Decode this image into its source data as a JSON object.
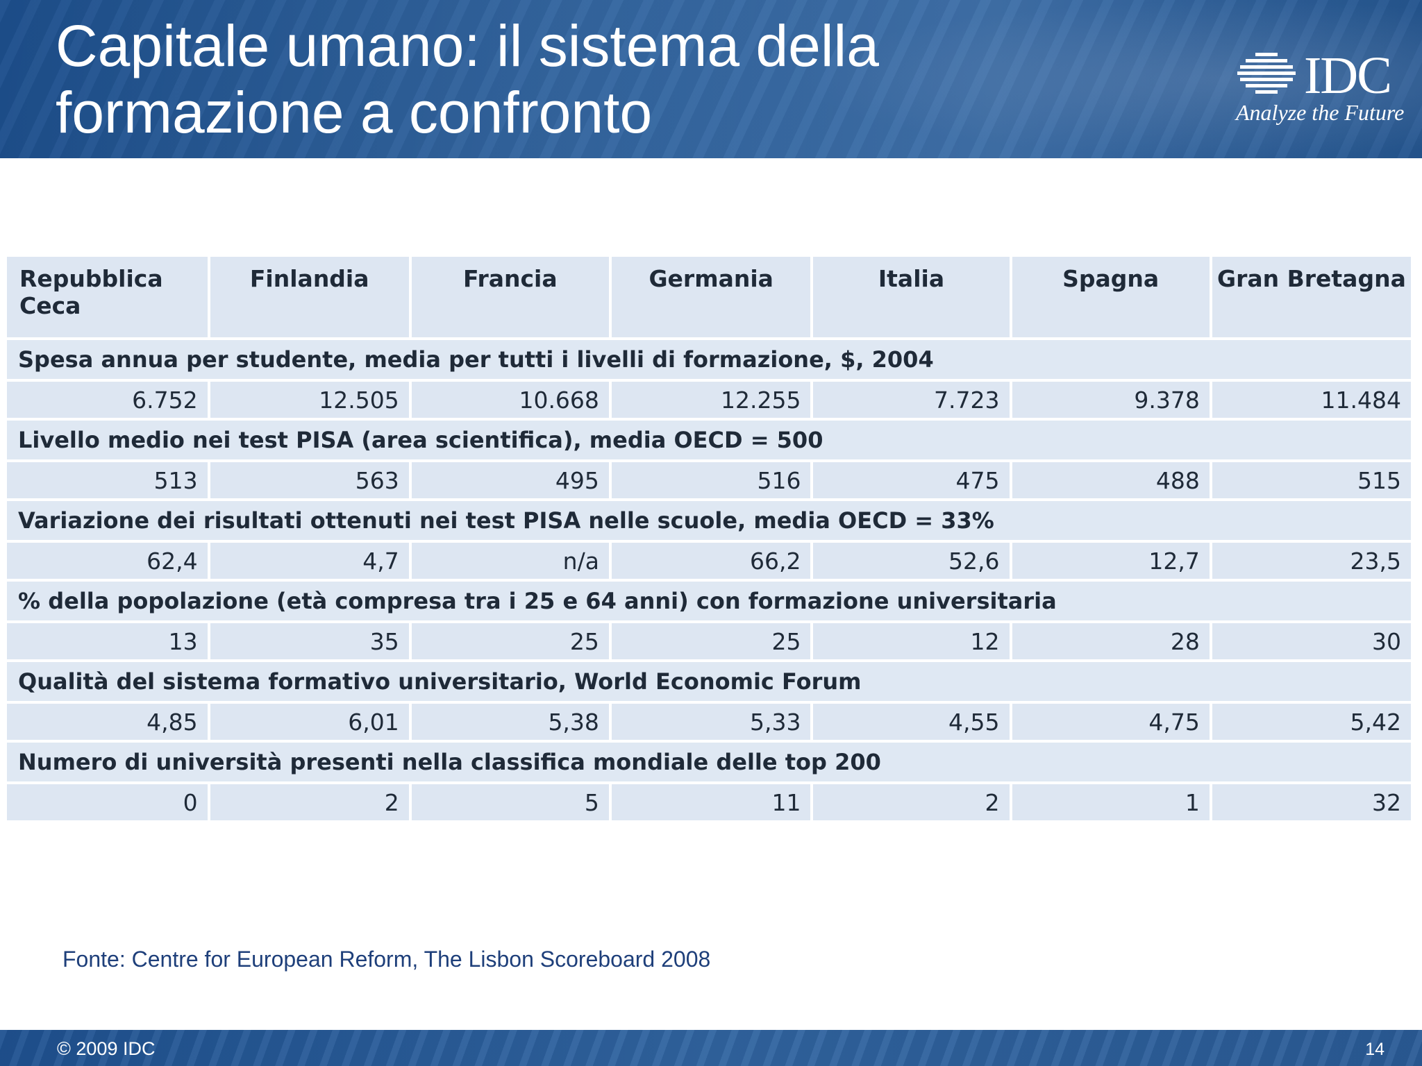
{
  "slide": {
    "title_line1": "Capitale umano: il sistema della",
    "title_line2": "formazione a confronto"
  },
  "logo": {
    "word": "IDC",
    "tagline": "Analyze the Future",
    "icon": "idc-globe-icon"
  },
  "table": {
    "columns": [
      "Repubblica Ceca",
      "Finlandia",
      "Francia",
      "Germania",
      "Italia",
      "Spagna",
      "Gran Bretagna"
    ],
    "sections": [
      {
        "label": "Spesa annua per studente, media per tutti i livelli di formazione, $, 2004",
        "values": [
          "6.752",
          "12.505",
          "10.668",
          "12.255",
          "7.723",
          "9.378",
          "11.484"
        ]
      },
      {
        "label": "Livello medio nei test PISA (area scientifica), media OECD = 500",
        "values": [
          "513",
          "563",
          "495",
          "516",
          "475",
          "488",
          "515"
        ]
      },
      {
        "label": "Variazione dei risultati ottenuti nei test PISA nelle scuole, media OECD = 33%",
        "values": [
          "62,4",
          "4,7",
          "n/a",
          "66,2",
          "52,6",
          "12,7",
          "23,5"
        ]
      },
      {
        "label": "% della popolazione (età compresa tra i 25 e 64 anni) con formazione universitaria",
        "values": [
          "13",
          "35",
          "25",
          "25",
          "12",
          "28",
          "30"
        ]
      },
      {
        "label": "Qualità del sistema formativo universitario, World Economic Forum",
        "values": [
          "4,85",
          "6,01",
          "5,38",
          "5,33",
          "4,55",
          "4,75",
          "5,42"
        ]
      },
      {
        "label": "Numero di università presenti nella classifica mondiale delle top 200",
        "values": [
          "0",
          "2",
          "5",
          "11",
          "2",
          "1",
          "32"
        ]
      }
    ]
  },
  "source": "Fonte: Centre for European Reform, The Lisbon Scoreboard 2008",
  "footer": {
    "copyright": "© 2009 IDC",
    "page_number": "14"
  }
}
